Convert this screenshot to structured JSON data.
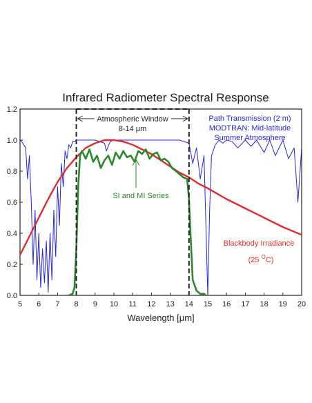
{
  "chart_data": {
    "type": "line",
    "title": "Infrared Radiometer Spectral Response",
    "xlabel": "Wavelength [μm]",
    "ylabel": "",
    "xlim": [
      5,
      20
    ],
    "ylim": [
      0,
      1.2
    ],
    "x_ticks": [
      "5",
      "6",
      "7",
      "8",
      "9",
      "10",
      "11",
      "12",
      "13",
      "14",
      "15",
      "16",
      "17",
      "18",
      "19",
      "20"
    ],
    "y_ticks": [
      "0.0",
      "0.2",
      "0.4",
      "0.6",
      "0.8",
      "1.0",
      "1.2"
    ],
    "grid": false,
    "colors": {
      "transmission": "#2424e0",
      "blackbody": "#e12a2a",
      "sensor": "#2a8a2a",
      "window": "#222222"
    },
    "annotations": {
      "window_line1": "Atmospheric Window",
      "window_line2": "8-14 μm",
      "path_line1": "Path Transmission (2 m)",
      "path_line2": "MODTRAN: Mid-latitude",
      "path_line3": "Summer Atmosphere",
      "sensor_label": "SI and MI Series",
      "blackbody_line1": "Blackbody Irradiance",
      "blackbody_line2_pre": "(25 ",
      "blackbody_line2_sup": "O",
      "blackbody_line2_post": "C)"
    },
    "window_range": [
      8,
      14
    ],
    "series": [
      {
        "key": "transmission",
        "x": [
          5.0,
          5.1,
          5.2,
          5.3,
          5.4,
          5.5,
          5.6,
          5.7,
          5.8,
          5.9,
          6.0,
          6.1,
          6.2,
          6.3,
          6.4,
          6.5,
          6.6,
          6.7,
          6.8,
          6.9,
          7.0,
          7.1,
          7.2,
          7.3,
          7.4,
          7.5,
          7.6,
          7.7,
          7.8,
          7.9,
          8.0,
          8.5,
          9.0,
          9.5,
          9.6,
          9.7,
          9.8,
          10.0,
          10.5,
          11.0,
          11.5,
          12.0,
          12.5,
          13.0,
          13.5,
          14.0,
          14.2,
          14.4,
          14.6,
          14.8,
          15.0,
          15.1,
          15.2,
          15.4,
          15.6,
          15.8,
          16.0,
          16.3,
          16.6,
          17.0,
          17.3,
          17.6,
          18.0,
          18.3,
          18.6,
          19.0,
          19.3,
          19.6,
          19.8,
          20.0
        ],
        "y": [
          1.0,
          0.99,
          0.97,
          0.95,
          0.75,
          0.9,
          0.6,
          0.2,
          0.55,
          0.1,
          0.4,
          0.05,
          0.3,
          0.08,
          0.35,
          0.02,
          0.4,
          0.1,
          0.55,
          0.25,
          0.7,
          0.45,
          0.85,
          0.7,
          0.93,
          0.88,
          0.97,
          0.95,
          0.99,
          0.99,
          1.0,
          1.0,
          1.0,
          0.98,
          0.93,
          0.96,
          0.99,
          1.0,
          1.0,
          1.0,
          1.0,
          1.0,
          1.0,
          1.0,
          1.0,
          0.98,
          0.85,
          0.95,
          0.75,
          0.9,
          0.0,
          0.55,
          0.9,
          0.97,
          1.0,
          0.98,
          1.0,
          0.99,
          0.95,
          1.0,
          0.96,
          1.0,
          0.92,
          1.0,
          0.9,
          1.0,
          0.88,
          0.95,
          0.6,
          0.95
        ]
      },
      {
        "key": "blackbody",
        "x": [
          5.0,
          5.5,
          6.0,
          6.5,
          7.0,
          7.5,
          8.0,
          8.5,
          9.0,
          9.5,
          9.8,
          10.0,
          10.5,
          11.0,
          11.5,
          12.0,
          12.5,
          13.0,
          13.5,
          14.0,
          14.5,
          15.0,
          16.0,
          17.0,
          18.0,
          19.0,
          20.0
        ],
        "y": [
          0.26,
          0.38,
          0.5,
          0.62,
          0.73,
          0.82,
          0.89,
          0.95,
          0.98,
          1.0,
          1.0,
          1.0,
          0.99,
          0.97,
          0.94,
          0.91,
          0.87,
          0.83,
          0.79,
          0.76,
          0.72,
          0.69,
          0.62,
          0.56,
          0.5,
          0.44,
          0.39
        ]
      },
      {
        "key": "sensor",
        "x": [
          7.6,
          7.8,
          7.9,
          8.0,
          8.1,
          8.2,
          8.3,
          8.5,
          8.7,
          8.9,
          9.1,
          9.3,
          9.5,
          9.7,
          9.9,
          10.1,
          10.3,
          10.5,
          10.7,
          10.9,
          11.1,
          11.3,
          11.5,
          11.7,
          11.9,
          12.1,
          12.3,
          12.5,
          12.7,
          12.9,
          13.1,
          13.3,
          13.5,
          13.7,
          13.9,
          14.0,
          14.1,
          14.2,
          14.4,
          14.6,
          14.8,
          14.9
        ],
        "y": [
          0.0,
          0.01,
          0.05,
          0.3,
          0.7,
          0.9,
          0.93,
          0.88,
          0.94,
          0.86,
          0.9,
          0.82,
          0.87,
          0.9,
          0.84,
          0.92,
          0.88,
          0.93,
          0.89,
          0.9,
          0.86,
          0.93,
          0.91,
          0.94,
          0.88,
          0.91,
          0.92,
          0.87,
          0.88,
          0.86,
          0.82,
          0.8,
          0.78,
          0.76,
          0.75,
          0.62,
          0.35,
          0.1,
          0.03,
          0.01,
          0.01,
          0.0
        ]
      }
    ]
  }
}
